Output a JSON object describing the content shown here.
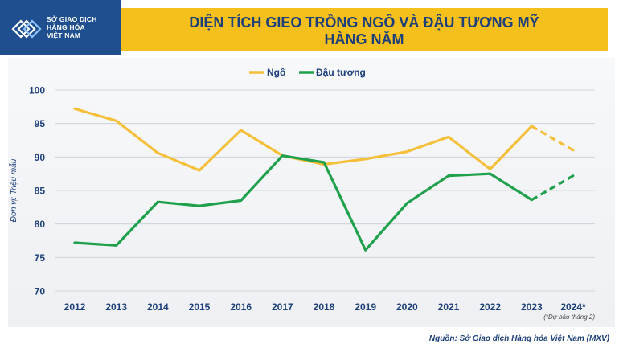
{
  "header": {
    "logo_lines": [
      "SỞ GIAO DỊCH",
      "HÀNG HÓA",
      "VIỆT NAM"
    ],
    "title_lines": [
      "DIỆN TÍCH GIEO TRỒNG NGÔ VÀ ĐẬU TƯƠNG MỸ",
      "HÀNG NĂM"
    ]
  },
  "footnote": "(*Dự báo tháng 2)",
  "source": "Nguồn: Sở Giao dịch Hàng hóa Việt Nam (MXV)",
  "colors": {
    "corn": "#f5bf3a",
    "soy": "#1fa04a",
    "title": "#1d3f7a",
    "brand": "#1f4f8f"
  },
  "chart_data": {
    "type": "line",
    "title": "DIỆN TÍCH GIEO TRỒNG NGÔ VÀ ĐẬU TƯƠNG MỸ HÀNG NĂM",
    "categories": [
      "2012",
      "2013",
      "2014",
      "2015",
      "2016",
      "2017",
      "2018",
      "2019",
      "2020",
      "2021",
      "2022",
      "2023",
      "2024*"
    ],
    "series": [
      {
        "name": "Ngô",
        "values": [
          97.2,
          95.4,
          90.6,
          88.0,
          94.0,
          90.2,
          88.9,
          89.7,
          90.8,
          93.0,
          88.2,
          94.6,
          91.0
        ],
        "forecast_from_index": 11
      },
      {
        "name": "Đậu tương",
        "values": [
          77.2,
          76.8,
          83.3,
          82.7,
          83.5,
          90.2,
          89.2,
          76.1,
          83.1,
          87.2,
          87.5,
          83.6,
          87.2
        ],
        "forecast_from_index": 11
      }
    ],
    "ylabel": "Đơn vị: Triệu mẫu",
    "xlabel": "",
    "ylim": [
      70,
      100
    ],
    "yticks": [
      70,
      75,
      80,
      85,
      90,
      95,
      100
    ],
    "legend": "top-center",
    "grid": true
  }
}
